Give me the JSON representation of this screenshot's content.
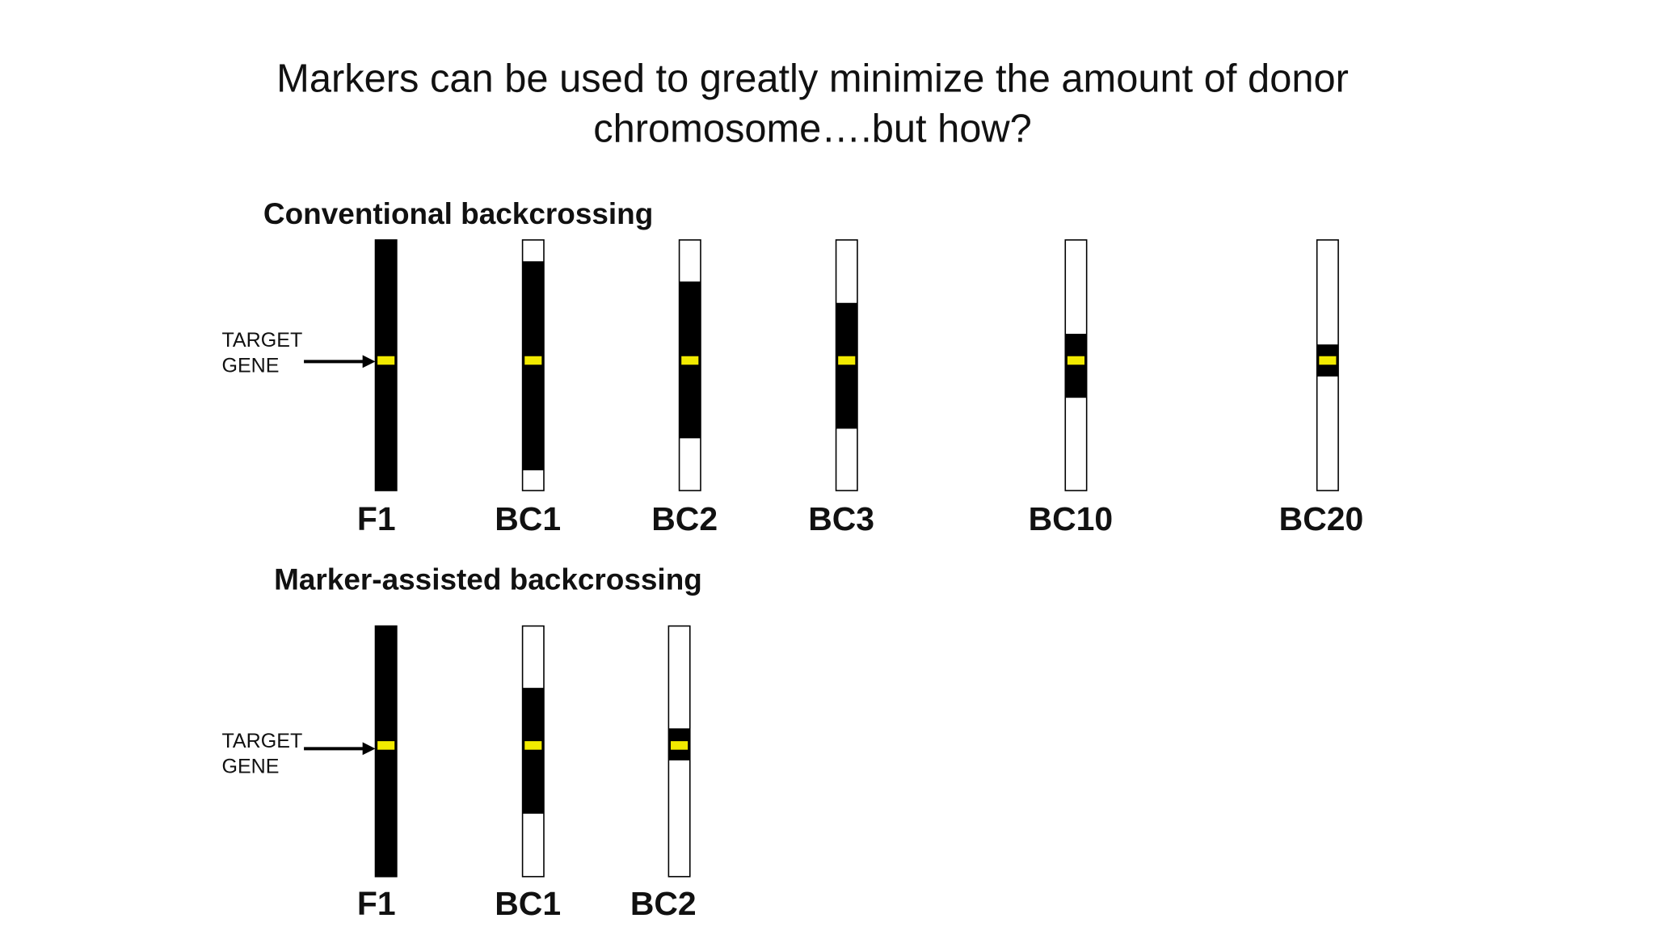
{
  "title_lines": [
    "Markers can be used to greatly minimize the amount of donor",
    "chromosome….but how?"
  ],
  "sections": [
    {
      "heading": "Conventional backcrossing",
      "target_lines": [
        "TARGET",
        "GENE"
      ],
      "chromosomes": [
        {
          "label": "F1"
        },
        {
          "label": "BC1"
        },
        {
          "label": "BC2"
        },
        {
          "label": "BC3"
        },
        {
          "label": "BC10"
        },
        {
          "label": "BC20"
        }
      ]
    },
    {
      "heading": "Marker-assisted backcrossing",
      "target_lines": [
        "TARGET",
        "GENE"
      ],
      "chromosomes": [
        {
          "label": "F1"
        },
        {
          "label": "BC1"
        },
        {
          "label": "BC2"
        }
      ]
    }
  ]
}
